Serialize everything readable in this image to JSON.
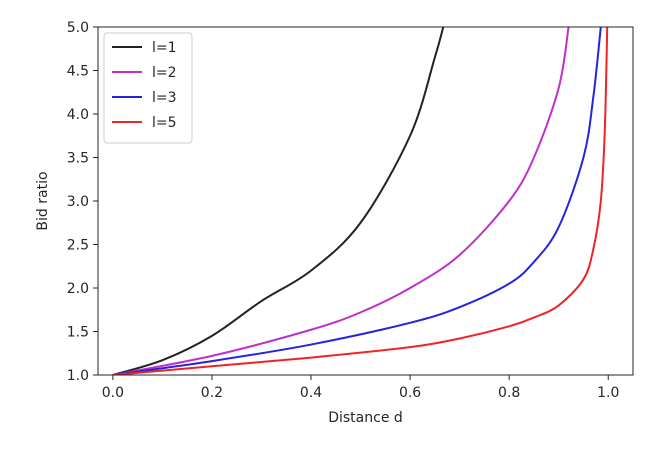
{
  "chart_data": {
    "type": "line",
    "title": "",
    "xlabel": "Distance d",
    "ylabel": "Bid ratio",
    "xlim": [
      -0.03,
      1.05
    ],
    "ylim": [
      1.0,
      5.0
    ],
    "x_ticks": [
      0.0,
      0.2,
      0.4,
      0.6,
      0.8,
      1.0
    ],
    "x_tick_labels": [
      "0.0",
      "0.2",
      "0.4",
      "0.6",
      "0.8",
      "1.0"
    ],
    "y_ticks": [
      1.0,
      1.5,
      2.0,
      2.5,
      3.0,
      3.5,
      4.0,
      4.5,
      5.0
    ],
    "y_tick_labels": [
      "1.0",
      "1.5",
      "2.0",
      "2.5",
      "3.0",
      "3.5",
      "4.0",
      "4.5",
      "5.0"
    ],
    "grid": false,
    "legend_position": "top-left",
    "series": [
      {
        "name": "l=1",
        "color": "#222222",
        "x": [
          0.0,
          0.1,
          0.2,
          0.3,
          0.4,
          0.5,
          0.6,
          0.65,
          0.667
        ],
        "y": [
          1.0,
          1.17,
          1.45,
          1.85,
          2.2,
          2.75,
          3.75,
          4.65,
          5.0
        ]
      },
      {
        "name": "l=2",
        "color": "#bf30c8",
        "x": [
          0.0,
          0.2,
          0.4,
          0.5,
          0.6,
          0.7,
          0.8,
          0.85,
          0.9,
          0.92
        ],
        "y": [
          1.0,
          1.22,
          1.52,
          1.72,
          2.0,
          2.38,
          3.0,
          3.5,
          4.3,
          5.0
        ]
      },
      {
        "name": "l=3",
        "color": "#2424e0",
        "x": [
          0.0,
          0.2,
          0.4,
          0.6,
          0.7,
          0.8,
          0.85,
          0.9,
          0.95,
          0.97,
          0.985
        ],
        "y": [
          1.0,
          1.16,
          1.35,
          1.6,
          1.78,
          2.05,
          2.3,
          2.7,
          3.5,
          4.2,
          5.0
        ]
      },
      {
        "name": "l=5",
        "color": "#ee2424",
        "x": [
          0.0,
          0.2,
          0.4,
          0.6,
          0.7,
          0.8,
          0.85,
          0.9,
          0.95,
          0.97,
          0.985,
          0.993,
          0.998
        ],
        "y": [
          1.0,
          1.1,
          1.2,
          1.32,
          1.42,
          1.56,
          1.66,
          1.8,
          2.1,
          2.45,
          3.0,
          3.8,
          5.0
        ]
      }
    ]
  }
}
